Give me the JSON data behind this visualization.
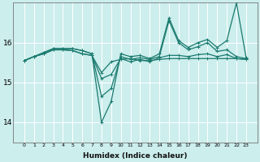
{
  "xlabel": "Humidex (Indice chaleur)",
  "background_color": "#cceeed",
  "grid_color": "#ffffff",
  "line_color": "#1a7a6e",
  "x": [
    0,
    1,
    2,
    3,
    4,
    5,
    6,
    7,
    8,
    9,
    10,
    11,
    12,
    13,
    14,
    15,
    16,
    17,
    18,
    19,
    20,
    21,
    22,
    23
  ],
  "series": [
    [
      15.55,
      15.65,
      15.72,
      15.82,
      15.82,
      15.8,
      15.72,
      15.68,
      15.25,
      15.52,
      15.58,
      15.6,
      15.55,
      15.55,
      15.58,
      15.6,
      15.6,
      15.6,
      15.6,
      15.6,
      15.6,
      15.6,
      15.6,
      15.58
    ],
    [
      15.55,
      15.65,
      15.72,
      15.82,
      15.82,
      15.8,
      15.72,
      15.68,
      15.1,
      15.2,
      15.6,
      15.52,
      15.58,
      15.52,
      15.62,
      15.68,
      15.68,
      15.65,
      15.7,
      15.72,
      15.65,
      15.7,
      15.6,
      15.58
    ],
    [
      15.55,
      15.65,
      15.75,
      15.85,
      15.85,
      15.85,
      15.8,
      15.72,
      14.65,
      14.85,
      15.65,
      15.58,
      15.62,
      15.58,
      15.65,
      16.55,
      16.0,
      15.82,
      15.9,
      16.0,
      15.78,
      15.82,
      15.65,
      15.6
    ],
    [
      15.55,
      15.65,
      15.75,
      15.85,
      15.85,
      15.85,
      15.8,
      15.72,
      14.0,
      14.52,
      15.72,
      15.65,
      15.68,
      15.6,
      15.72,
      16.62,
      16.05,
      15.88,
      16.0,
      16.08,
      15.88,
      16.05,
      17.0,
      15.62
    ]
  ],
  "ylim": [
    13.5,
    17.0
  ],
  "yticks": [
    14,
    15,
    16
  ],
  "xticks": [
    0,
    1,
    2,
    3,
    4,
    5,
    6,
    7,
    8,
    9,
    10,
    11,
    12,
    13,
    14,
    15,
    16,
    17,
    18,
    19,
    20,
    21,
    22,
    23
  ]
}
